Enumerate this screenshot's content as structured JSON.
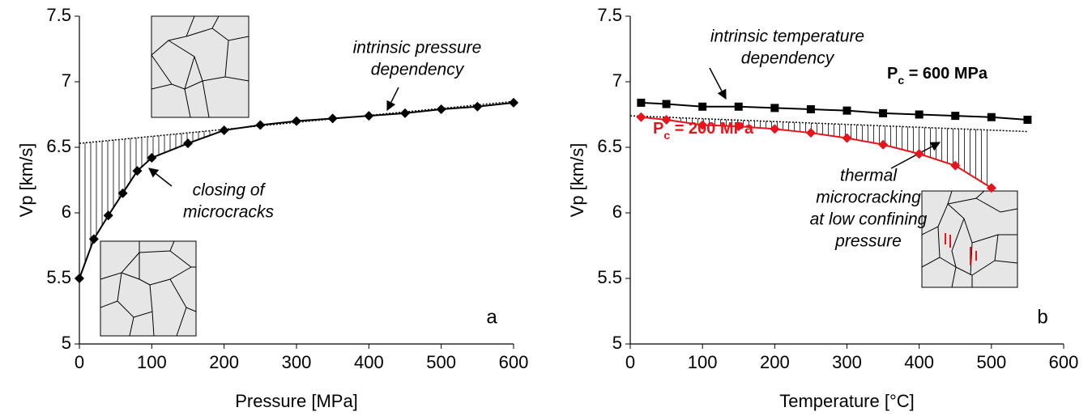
{
  "chart_data": [
    {
      "type": "line",
      "x_label": "Pressure [MPa]",
      "y_label": "Vp [km/s]",
      "panel_label": "a",
      "xlim": [
        0,
        600
      ],
      "ylim": [
        5,
        7.5
      ],
      "xticks": [
        0,
        100,
        200,
        300,
        400,
        500,
        600
      ],
      "yticks": [
        5,
        5.5,
        6,
        6.5,
        7,
        7.5
      ],
      "series": [
        {
          "color": "#000000",
          "marker": "diamond",
          "x": [
            0,
            20,
            40,
            60,
            80,
            100,
            150,
            200,
            250,
            300,
            350,
            400,
            450,
            500,
            550,
            600
          ],
          "values": [
            5.5,
            5.8,
            5.98,
            6.15,
            6.32,
            6.42,
            6.53,
            6.63,
            6.67,
            6.7,
            6.72,
            6.74,
            6.76,
            6.79,
            6.81,
            6.84
          ]
        }
      ],
      "trend": {
        "x": [
          0,
          600
        ],
        "values": [
          6.53,
          6.85
        ]
      },
      "annotations": [
        {
          "lines": [
            "intrinsic pressure",
            "dependency"
          ]
        },
        {
          "lines": [
            "closing of",
            "microcracks"
          ]
        }
      ]
    },
    {
      "type": "line",
      "x_label": "Temperature [°C]",
      "y_label": "Vp [km/s]",
      "panel_label": "b",
      "xlim": [
        0,
        600
      ],
      "ylim": [
        5,
        7.5
      ],
      "xticks": [
        0,
        100,
        200,
        300,
        400,
        500,
        600
      ],
      "yticks": [
        5,
        5.5,
        6,
        6.5,
        7,
        7.5
      ],
      "series": [
        {
          "name": "Pc = 600 MPa",
          "color": "#000000",
          "marker": "square",
          "x": [
            15,
            50,
            100,
            150,
            200,
            250,
            300,
            350,
            400,
            450,
            500,
            550
          ],
          "values": [
            6.84,
            6.83,
            6.81,
            6.81,
            6.8,
            6.79,
            6.78,
            6.76,
            6.75,
            6.74,
            6.73,
            6.71
          ]
        },
        {
          "name": "Pc = 200 MPa",
          "color": "#e8141b",
          "marker": "diamond",
          "x": [
            15,
            50,
            100,
            150,
            200,
            250,
            300,
            350,
            400,
            450,
            500
          ],
          "values": [
            6.73,
            6.71,
            6.67,
            6.66,
            6.64,
            6.61,
            6.57,
            6.52,
            6.45,
            6.36,
            6.19
          ]
        }
      ],
      "trend": {
        "x": [
          0,
          550
        ],
        "values": [
          6.74,
          6.62
        ]
      },
      "annotations": [
        {
          "lines": [
            "intrinsic temperature",
            "dependency"
          ]
        },
        {
          "lines": [
            "thermal",
            "microcracking",
            "at low confining",
            "pressure"
          ]
        }
      ]
    }
  ]
}
